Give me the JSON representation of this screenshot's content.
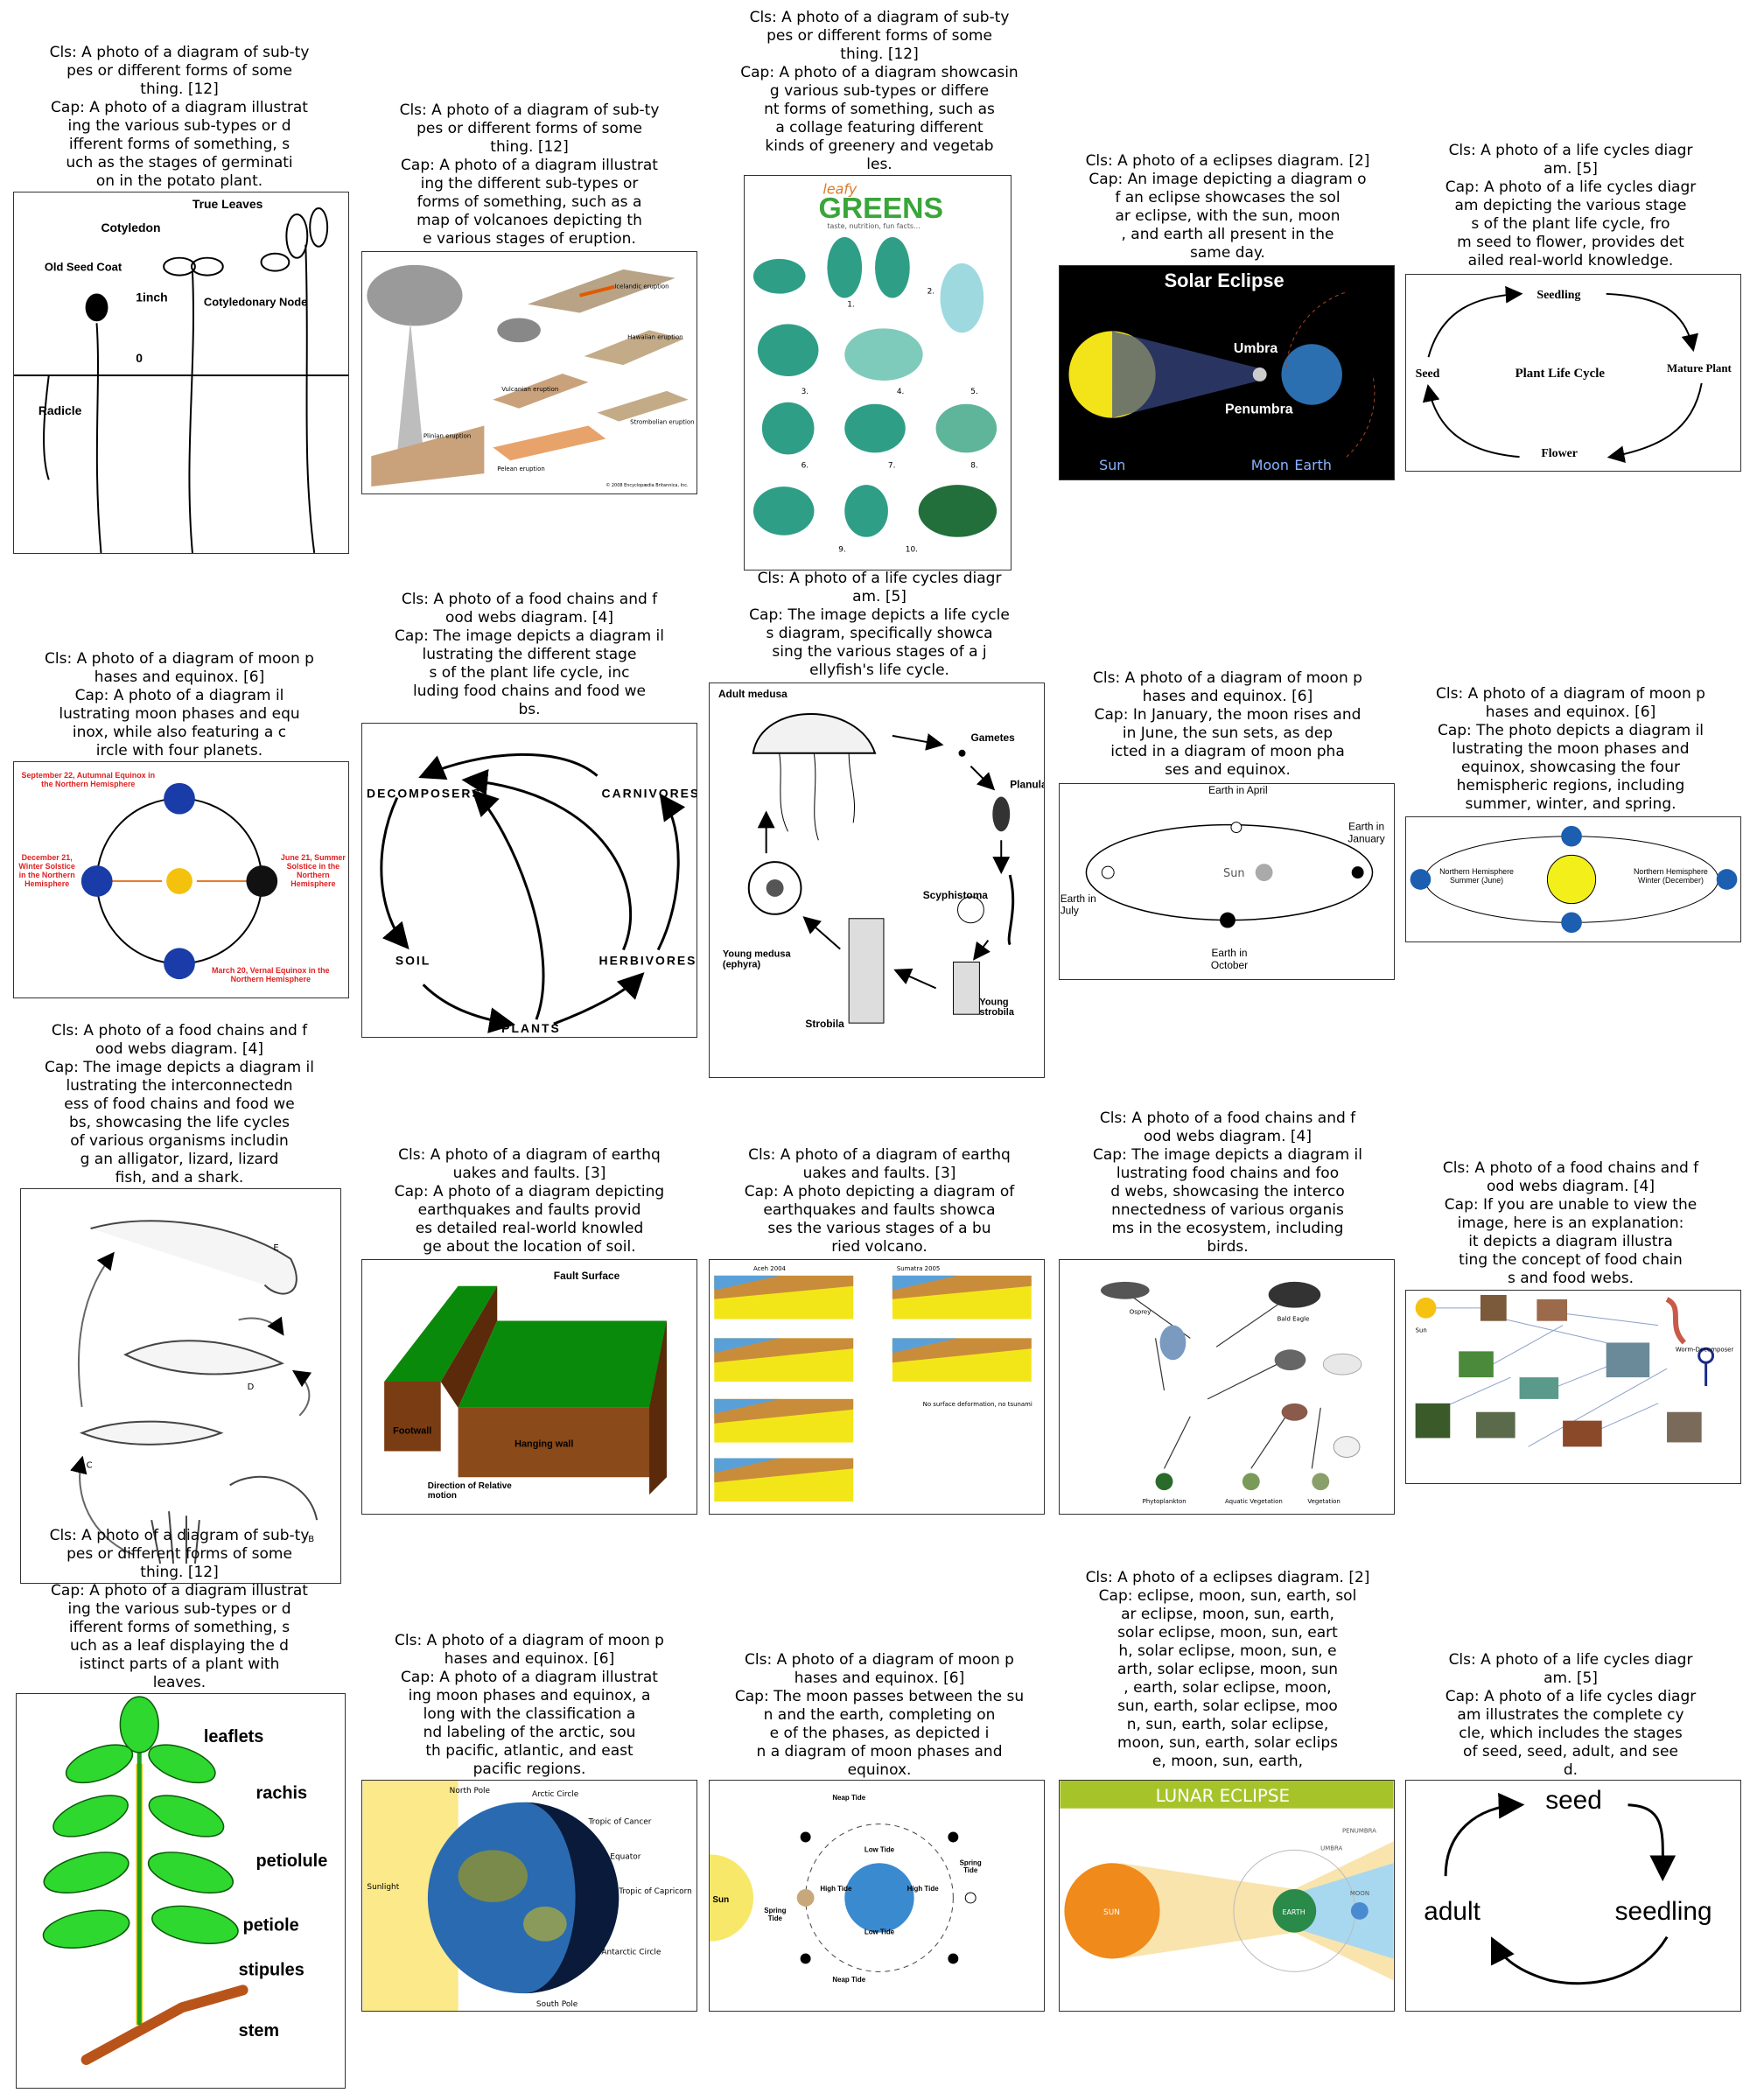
{
  "cells": [
    {
      "id": "c1",
      "caption": "Cls: A photo of a diagram of sub-ty\npes or different forms of some\nthing. [12]\nCap: A photo of a diagram illustrat\ning the various sub-types or d\nifferent forms of something, s\nuch as the stages of germinati\non in the potato plant.",
      "labels": {
        "true_leaves": "True Leaves",
        "cotyledon": "Cotyledon",
        "old_seed_coat": "Old Seed Coat",
        "inch": "1inch",
        "zero": "0",
        "cot_node": "Cotyledonary Node",
        "radicle": "Radicle"
      }
    },
    {
      "id": "c2",
      "caption": "Cls: A photo of a diagram of sub-ty\npes or different forms of some\nthing. [12]\nCap: A photo of a diagram illustrat\ning the different sub-types or\nforms of something, such as a\nmap of volcanoes depicting th\ne various stages of eruption.",
      "labels": {
        "icelandic": "Icelandic eruption",
        "hawaiian": "Hawaiian eruption",
        "vulcanian": "Vulcanian eruption",
        "strombolian": "Strombolian eruption",
        "plinian": "Plinian eruption",
        "pelean": "Pelean eruption",
        "copyright": "© 2008 Encyclopædia Britannica, Inc."
      }
    },
    {
      "id": "c3",
      "caption": "Cls: A photo of a diagram of sub-ty\npes or different forms of some\nthing. [12]\nCap: A photo of a diagram showcasin\ng various sub-types or differe\nnt forms of something, such as\na collage featuring different\nkinds of greenery and vegetab\nles.",
      "labels": {
        "leafy": "leafy",
        "greens": "GREENS",
        "tagline": "taste, nutrition, fun facts...",
        "n1": "1.",
        "n2": "2.",
        "n3": "3.",
        "n4": "4.",
        "n5": "5.",
        "n6": "6.",
        "n7": "7.",
        "n8": "8.",
        "n9": "9.",
        "n10": "10."
      }
    },
    {
      "id": "c4",
      "caption": "Cls: A photo of a eclipses diagram. [2]\nCap: An image depicting a diagram o\nf an eclipse showcases the sol\nar eclipse, with the sun, moon\n, and earth all present in the\nsame day.",
      "labels": {
        "title": "Solar Eclipse",
        "umbra": "Umbra",
        "penumbra": "Penumbra",
        "sun": "Sun",
        "moon": "Moon",
        "earth": "Earth"
      }
    },
    {
      "id": "c5",
      "caption": "Cls: A photo of a life cycles diagr\nam. [5]\nCap: A photo of a life cycles diagr\nam depicting the various stage\ns of the plant life cycle, fro\nm seed to flower, provides det\nailed real-world knowledge.",
      "labels": {
        "seedling": "Seedling",
        "seed": "Seed",
        "center": "Plant Life Cycle",
        "mature": "Mature Plant",
        "flower": "Flower"
      }
    },
    {
      "id": "c6",
      "caption": "Cls: A photo of a diagram of moon p\nhases and equinox. [6]\nCap: A photo of a diagram il\nlustrating moon phases and equ\ninox, while also featuring a c\nircle with four planets.",
      "labels": {
        "autumnal": "September 22, Autumnal Equinox in the Northern Hemisphere",
        "winter": "December 21, Winter Solstice in the Northern Hemisphere",
        "summer": "June 21, Summer Solstice in the Northern Hemisphere",
        "vernal": "March 20, Vernal Equinox in the Northern Hemisphere"
      }
    },
    {
      "id": "c7",
      "caption": "Cls: A photo of a food chains and f\nood webs diagram. [4]\nCap: The image depicts a diagram il\nlustrating the different stage\ns of the plant life cycle, inc\nluding food chains and food we\nbs.",
      "labels": {
        "decomposers": "DECOMPOSERS",
        "carnivores": "CARNIVORES",
        "soil": "SOIL",
        "herbivores": "HERBIVORES",
        "plants": "PLANTS"
      }
    },
    {
      "id": "c8",
      "caption": "Cls: A photo of a life cycles diagr\nam. [5]\nCap: The image depicts a life cycle\ns diagram, specifically showca\nsing the various stages of a j\nellyfish's life cycle.",
      "labels": {
        "adult": "Adult medusa",
        "gametes": "Gametes",
        "planula": "Planula",
        "scyphistoma": "Scyphistoma",
        "young_medusa": "Young medusa (ephyra)",
        "strobila": "Strobila",
        "young_strobila": "Young strobila"
      }
    },
    {
      "id": "c9",
      "caption": "Cls: A photo of a diagram of moon p\nhases and equinox. [6]\nCap: In January, the moon rises and\nin June, the sun sets, as dep\nicted in a diagram of moon pha\nses and equinox.",
      "labels": {
        "april": "Earth in April",
        "january": "Earth in January",
        "sun": "Sun",
        "july": "Earth in July",
        "october": "Earth in October"
      }
    },
    {
      "id": "c10",
      "caption": "Cls: A photo of a diagram of moon p\nhases and equinox. [6]\nCap: The photo depicts a diagram il\nlustrating the moon phases and\nequinox, showcasing the four\nhemispheric regions, including\nsummer, winter, and spring.",
      "labels": {
        "nh_summer": "Northern Hemisphere Summer (June)",
        "nh_winter": "Northern Hemisphere Winter (December)"
      }
    },
    {
      "id": "c11",
      "caption": "Cls: A photo of a food chains and f\nood webs diagram. [4]\nCap: The image depicts a diagram il\nlustrating the interconnectedn\ness of food chains and food we\nbs, showcasing the life cycles\nof various organisms includin\ng an alligator, lizard, lizard\nfish, and a shark.",
      "labels": {
        "e": "E",
        "d": "D",
        "c": "C",
        "b": "B"
      }
    },
    {
      "id": "c12",
      "caption": "Cls: A photo of a diagram of earthq\nuakes and faults. [3]\nCap: A photo of a diagram depicting\nearthquakes and faults provid\nes detailed real-world knowled\nge about the location of soil.",
      "labels": {
        "fault_surface": "Fault Surface",
        "footwall": "Footwall",
        "hanging": "Hanging wall",
        "direction": "Direction of Relative motion"
      }
    },
    {
      "id": "c13",
      "caption": "Cls: A photo of a diagram of earthq\nuakes and faults. [3]\nCap: A photo depicting a diagram of\nearthquakes and faults showca\nses the various stages of a bu\nried volcano.",
      "labels": {
        "aceh": "Aceh 2004",
        "sumatra": "Sumatra 2005",
        "no_def": "No surface deformation, no tsunami"
      }
    },
    {
      "id": "c14",
      "caption": "Cls: A photo of a food chains and f\nood webs diagram. [4]\nCap: The image depicts a diagram il\nlustrating food chains and foo\nd webs, showcasing the interco\nnnectedness of various organis\nms in the ecosystem, including\nbirds.",
      "labels": {
        "osprey": "Osprey",
        "bald_eagle": "Bald Eagle",
        "phytoplankton": "Phytoplankton",
        "aquatic": "Aquatic Vegetation",
        "vegetation": "Vegetation"
      }
    },
    {
      "id": "c15",
      "caption": "Cls: A photo of a food chains and f\nood webs diagram. [4]\nCap: If you are unable to view the\nimage, here is an explanation:\nit depicts a diagram illustra\nting the concept of food chain\ns and food webs.",
      "labels": {
        "sun": "Sun",
        "worm": "Worm-Decomposer"
      }
    },
    {
      "id": "c16",
      "caption": "Cls: A photo of a diagram of sub-ty\npes or different forms of some\nthing. [12]\nCap: A photo of a diagram illustrat\ning the various sub-types or d\nifferent forms of something, s\nuch as a leaf displaying the d\nistinct parts of a plant with\nleaves.",
      "labels": {
        "leaflets": "leaflets",
        "rachis": "rachis",
        "petiolule": "petiolule",
        "petiole": "petiole",
        "stipules": "stipules",
        "stem": "stem"
      }
    },
    {
      "id": "c17",
      "caption": "Cls: A photo of a diagram of moon p\nhases and equinox. [6]\nCap: A photo of a diagram illustrat\ning moon phases and equinox, a\nlong with the classification a\nnd labeling of the arctic, sou\nth pacific, atlantic, and east\npacific regions.",
      "labels": {
        "north": "North Pole",
        "arctic": "Arctic Circle",
        "cancer": "Tropic of Cancer",
        "equator": "Equator",
        "sunlight": "Sunlight",
        "capricorn": "Tropic of Capricorn",
        "antarctic": "Antarctic Circle",
        "south": "South Pole"
      }
    },
    {
      "id": "c18",
      "caption": "Cls: A photo of a diagram of moon p\nhases and equinox. [6]\nCap: The moon passes between the su\nn and the earth, completing on\ne of the phases, as depicted i\nn a diagram of moon phases and\nequinox.",
      "labels": {
        "neap_top": "Neap Tide",
        "low_top": "Low Tide",
        "spring_l": "Spring Tide",
        "high_l": "High Tide",
        "high_r": "High Tide",
        "spring_r": "Spring Tide",
        "low_bot": "Low Tide",
        "neap_bot": "Neap Tide",
        "sun": "Sun"
      }
    },
    {
      "id": "c19",
      "caption": "Cls: A photo of a eclipses diagram. [2]\nCap: eclipse, moon, sun, earth, sol\nar eclipse, moon, sun, earth,\nsolar eclipse, moon, sun, eart\nh, solar eclipse, moon, sun, e\narth, solar eclipse, moon, sun\n, earth, solar eclipse, moon,\nsun, earth, solar eclipse, moo\nn, sun, earth, solar eclipse,\nmoon, sun, earth, solar eclips\ne, moon, sun, earth,",
      "labels": {
        "title": "LUNAR ECLIPSE",
        "sun": "SUN",
        "earth": "EARTH",
        "moon": "MOON",
        "umbra": "UMBRA",
        "penumbra": "PENUMBRA"
      }
    },
    {
      "id": "c20",
      "caption": "Cls: A photo of a life cycles diagr\nam. [5]\nCap: A photo of a life cycles diagr\nam illustrates the complete cy\ncle, which includes the stages\nof seed, seed, adult, and see\nd.",
      "labels": {
        "seed": "seed",
        "adult": "adult",
        "seedling": "seedling"
      }
    }
  ]
}
